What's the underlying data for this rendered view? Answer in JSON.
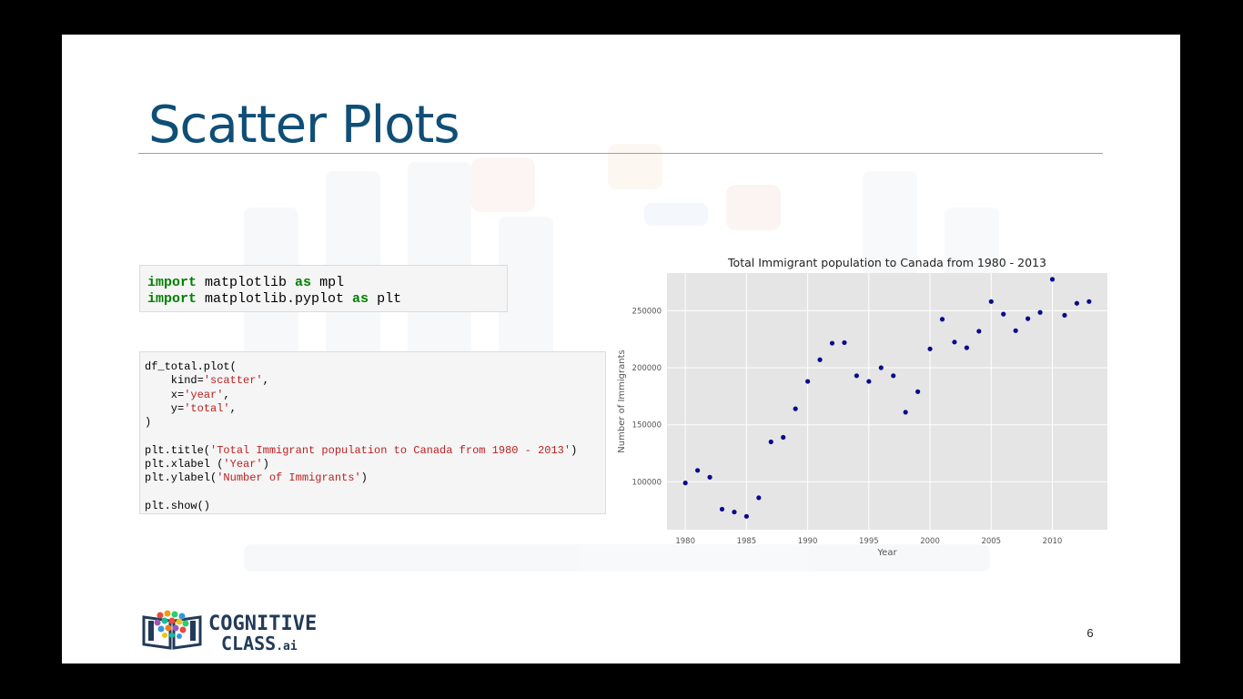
{
  "slide": {
    "title": "Scatter Plots",
    "page_number": "6"
  },
  "code_block_1": {
    "lines": [
      [
        {
          "t": "import",
          "c": "kw"
        },
        {
          "t": " matplotlib ",
          "c": ""
        },
        {
          "t": "as",
          "c": "kw"
        },
        {
          "t": " mpl",
          "c": ""
        }
      ],
      [
        {
          "t": "import",
          "c": "kw"
        },
        {
          "t": " matplotlib.pyplot ",
          "c": ""
        },
        {
          "t": "as",
          "c": "kw"
        },
        {
          "t": " plt",
          "c": ""
        }
      ]
    ]
  },
  "code_block_2": {
    "lines": [
      [
        {
          "t": "df_total.plot(",
          "c": ""
        }
      ],
      [
        {
          "t": "    kind=",
          "c": ""
        },
        {
          "t": "'scatter'",
          "c": "str"
        },
        {
          "t": ",",
          "c": ""
        }
      ],
      [
        {
          "t": "    x=",
          "c": ""
        },
        {
          "t": "'year'",
          "c": "str"
        },
        {
          "t": ",",
          "c": ""
        }
      ],
      [
        {
          "t": "    y=",
          "c": ""
        },
        {
          "t": "'total'",
          "c": "str"
        },
        {
          "t": ",",
          "c": ""
        }
      ],
      [
        {
          "t": ")",
          "c": ""
        }
      ],
      [
        {
          "t": "",
          "c": ""
        }
      ],
      [
        {
          "t": "plt.title(",
          "c": ""
        },
        {
          "t": "'Total Immigrant population to Canada from 1980 - 2013'",
          "c": "str"
        },
        {
          "t": ")",
          "c": ""
        }
      ],
      [
        {
          "t": "plt.xlabel (",
          "c": ""
        },
        {
          "t": "'Year'",
          "c": "str"
        },
        {
          "t": ")",
          "c": ""
        }
      ],
      [
        {
          "t": "plt.ylabel(",
          "c": ""
        },
        {
          "t": "'Number of Immigrants'",
          "c": "str"
        },
        {
          "t": ")",
          "c": ""
        }
      ],
      [
        {
          "t": "",
          "c": ""
        }
      ],
      [
        {
          "t": "plt.show()",
          "c": ""
        }
      ]
    ]
  },
  "chart_data": {
    "type": "scatter",
    "title": "Total Immigrant population to Canada from 1980 - 2013",
    "xlabel": "Year",
    "ylabel": "Number of Immigrants",
    "x": [
      1980,
      1981,
      1982,
      1983,
      1984,
      1985,
      1986,
      1987,
      1988,
      1989,
      1990,
      1991,
      1992,
      1993,
      1994,
      1995,
      1996,
      1997,
      1998,
      1999,
      2000,
      2001,
      2002,
      2003,
      2004,
      2005,
      2006,
      2007,
      2008,
      2009,
      2010,
      2011,
      2012,
      2013
    ],
    "y": [
      99000,
      110000,
      104000,
      76000,
      73500,
      69700,
      86000,
      135000,
      139000,
      164000,
      188000,
      207000,
      221500,
      222000,
      193000,
      188000,
      200000,
      193000,
      161000,
      179000,
      216500,
      242500,
      222500,
      217500,
      232000,
      258000,
      247000,
      232500,
      243000,
      248500,
      277500,
      246000,
      256500,
      258000
    ],
    "xlim": [
      1978.5,
      2014.5
    ],
    "ylim": [
      58000,
      283000
    ],
    "xticks": [
      1980,
      1985,
      1990,
      1995,
      2000,
      2005,
      2010
    ],
    "yticks": [
      100000,
      150000,
      200000,
      250000
    ],
    "grid": true,
    "colors": {
      "marker": "#0a0a8c",
      "plot_bg": "#e5e5e5",
      "grid": "#ffffff"
    }
  },
  "logo": {
    "line1": "COGNITIVE",
    "line2": "CLASS",
    "suffix": ".ai"
  }
}
